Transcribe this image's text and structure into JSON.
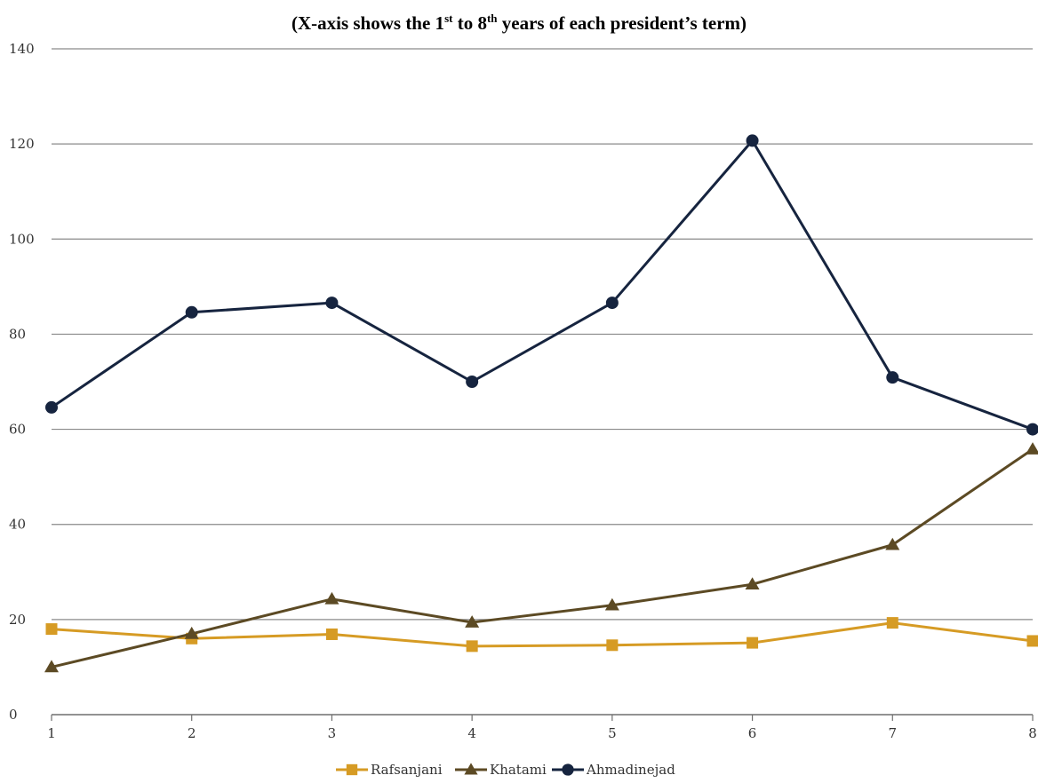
{
  "chart_data": {
    "type": "line",
    "title": {
      "prefix": "(X-axis shows the 1",
      "sup1": "st",
      "middle": " to 8",
      "sup2": "th",
      "suffix": " years of each president’s term)"
    },
    "x": [
      1,
      2,
      3,
      4,
      5,
      6,
      7,
      8
    ],
    "x_tick_labels": [
      "1",
      "2",
      "3",
      "4",
      "5",
      "6",
      "7",
      "8"
    ],
    "ylim": [
      0,
      140
    ],
    "y_ticks": [
      0,
      20,
      40,
      60,
      80,
      100,
      120,
      140
    ],
    "grid": "horizontal",
    "legend_position": "bottom",
    "series": [
      {
        "name": "Rafsanjani",
        "color": "#D69B24",
        "marker": "square",
        "values": [
          18,
          16,
          16.9,
          14.4,
          14.6,
          15.1,
          19.3,
          15.5
        ]
      },
      {
        "name": "Khatami",
        "color": "#5C4A24",
        "marker": "triangle",
        "values": [
          10,
          17,
          24.3,
          19.4,
          23,
          27.4,
          35.7,
          55.8
        ]
      },
      {
        "name": "Ahmadinejad",
        "color": "#16243F",
        "marker": "circle",
        "values": [
          64.6,
          84.6,
          86.6,
          70,
          86.6,
          120.7,
          70.9,
          60
        ]
      }
    ]
  }
}
